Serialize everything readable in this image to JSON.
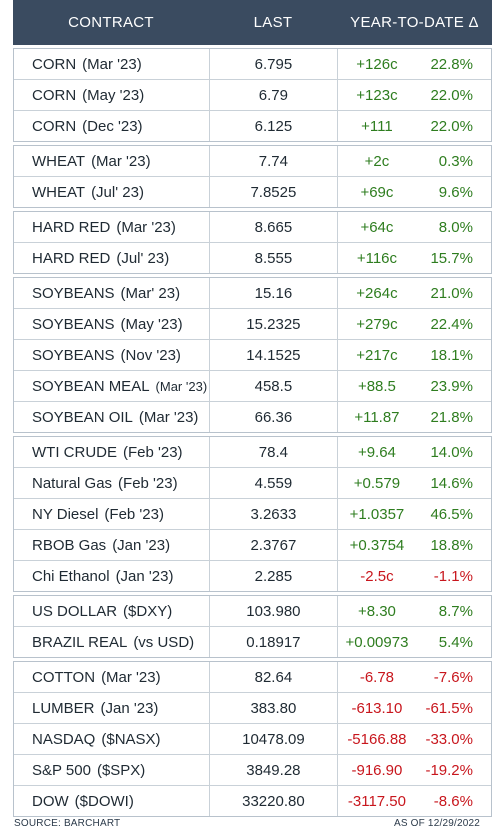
{
  "header": {
    "contract": "CONTRACT",
    "last": "LAST",
    "ytd": "YEAR-TO-DATE Δ"
  },
  "groups": [
    [
      {
        "name": "CORN",
        "month": "(Mar '23)",
        "last": "6.795",
        "change": "+126c",
        "pct": "22.8%",
        "dir": "pos"
      },
      {
        "name": "CORN",
        "month": "(May '23)",
        "last": "6.79",
        "change": "+123c",
        "pct": "22.0%",
        "dir": "pos"
      },
      {
        "name": "CORN",
        "month": "(Dec '23)",
        "last": "6.125",
        "change": "+111",
        "pct": "22.0%",
        "dir": "pos"
      }
    ],
    [
      {
        "name": "WHEAT",
        "month": "(Mar '23)",
        "last": "7.74",
        "change": "+2c",
        "pct": "0.3%",
        "dir": "pos"
      },
      {
        "name": "WHEAT",
        "month": "(Jul' 23)",
        "last": "7.8525",
        "change": "+69c",
        "pct": "9.6%",
        "dir": "pos"
      }
    ],
    [
      {
        "name": "HARD RED",
        "month": "(Mar '23)",
        "last": "8.665",
        "change": "+64c",
        "pct": "8.0%",
        "dir": "pos"
      },
      {
        "name": "HARD RED",
        "month": "(Jul' 23)",
        "last": "8.555",
        "change": "+116c",
        "pct": "15.7%",
        "dir": "pos"
      }
    ],
    [
      {
        "name": "SOYBEANS",
        "month": "(Mar' 23)",
        "last": "15.16",
        "change": "+264c",
        "pct": "21.0%",
        "dir": "pos"
      },
      {
        "name": "SOYBEANS",
        "month": "(May '23)",
        "last": "15.2325",
        "change": "+279c",
        "pct": "22.4%",
        "dir": "pos"
      },
      {
        "name": "SOYBEANS",
        "month": "(Nov '23)",
        "last": "14.1525",
        "change": "+217c",
        "pct": "18.1%",
        "dir": "pos"
      },
      {
        "name": "SOYBEAN MEAL",
        "month": "(Mar '23)",
        "last": "458.5",
        "change": "+88.5",
        "pct": "23.9%",
        "dir": "pos",
        "small": true
      },
      {
        "name": "SOYBEAN OIL",
        "month": "(Mar '23)",
        "last": "66.36",
        "change": "+11.87",
        "pct": "21.8%",
        "dir": "pos"
      }
    ],
    [
      {
        "name": "WTI CRUDE",
        "month": "(Feb '23)",
        "last": "78.4",
        "change": "+9.64",
        "pct": "14.0%",
        "dir": "pos"
      },
      {
        "name": "Natural Gas",
        "month": "(Feb '23)",
        "last": "4.559",
        "change": "+0.579",
        "pct": "14.6%",
        "dir": "pos"
      },
      {
        "name": "NY Diesel",
        "month": "(Feb '23)",
        "last": "3.2633",
        "change": "+1.0357",
        "pct": "46.5%",
        "dir": "pos"
      },
      {
        "name": "RBOB Gas",
        "month": "(Jan '23)",
        "last": "2.3767",
        "change": "+0.3754",
        "pct": "18.8%",
        "dir": "pos"
      },
      {
        "name": "Chi Ethanol",
        "month": "(Jan '23)",
        "last": "2.285",
        "change": "-2.5c",
        "pct": "-1.1%",
        "dir": "neg"
      }
    ],
    [
      {
        "name": "US DOLLAR",
        "month": "($DXY)",
        "last": "103.980",
        "change": "+8.30",
        "pct": "8.7%",
        "dir": "pos"
      },
      {
        "name": "BRAZIL REAL",
        "month": "(vs USD)",
        "last": "0.18917",
        "change": "+0.00973",
        "pct": "5.4%",
        "dir": "pos"
      }
    ],
    [
      {
        "name": "COTTON",
        "month": "(Mar '23)",
        "last": "82.64",
        "change": "-6.78",
        "pct": "-7.6%",
        "dir": "neg"
      },
      {
        "name": "LUMBER",
        "month": "(Jan '23)",
        "last": "383.80",
        "change": "-613.10",
        "pct": "-61.5%",
        "dir": "neg"
      },
      {
        "name": "NASDAQ",
        "month": "($NASX)",
        "last": "10478.09",
        "change": "-5166.88",
        "pct": "-33.0%",
        "dir": "neg"
      },
      {
        "name": "S&P 500",
        "month": "($SPX)",
        "last": "3849.28",
        "change": "-916.90",
        "pct": "-19.2%",
        "dir": "neg"
      },
      {
        "name": "DOW",
        "month": "($DOWI)",
        "last": "33220.80",
        "change": "-3117.50",
        "pct": "-8.6%",
        "dir": "neg"
      }
    ]
  ],
  "footer": {
    "source": "SOURCE: BARCHART",
    "asof": "AS OF 12/29/2022"
  }
}
